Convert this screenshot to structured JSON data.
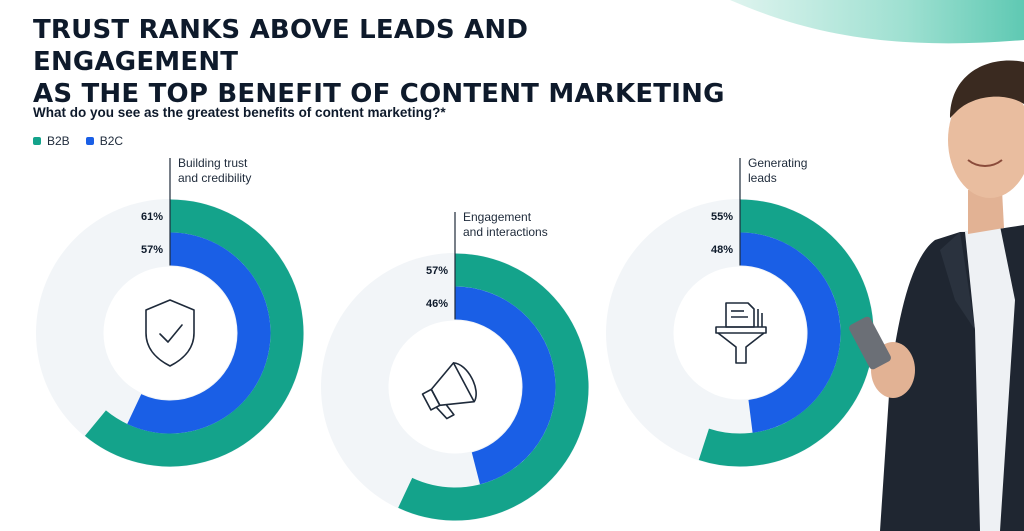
{
  "title_line1": "TRUST RANKS ABOVE LEADS AND ENGAGEMENT",
  "title_line2": "AS THE TOP BENEFIT OF CONTENT MARKETING",
  "question": "What do you see as the greatest benefits of content marketing?*",
  "colors": {
    "b2b": "#14a38b",
    "b2c": "#1a5fe6",
    "track": "#f2f5f8",
    "text": "#0e1a2b"
  },
  "chart_data": {
    "type": "radial-bar",
    "series": [
      {
        "name": "B2B",
        "values": [
          61,
          57,
          55
        ]
      },
      {
        "name": "B2C",
        "values": [
          57,
          46,
          48
        ]
      }
    ],
    "categories": [
      {
        "label_line1": "Building trust",
        "label_line2": "and credibility",
        "icon": "shield-check-icon",
        "b2b": 61,
        "b2c": 57,
        "b2b_label": "61%",
        "b2c_label": "57%"
      },
      {
        "label_line1": "Engagement",
        "label_line2": "and interactions",
        "icon": "megaphone-icon",
        "b2b": 57,
        "b2c": 46,
        "b2b_label": "57%",
        "b2c_label": "46%"
      },
      {
        "label_line1": "Generating",
        "label_line2": "leads",
        "icon": "document-funnel-icon",
        "b2b": 55,
        "b2c": 48,
        "b2b_label": "55%",
        "b2c_label": "48%"
      }
    ],
    "legend": [
      "B2B",
      "B2C"
    ],
    "legend_position": "top-left",
    "max": 100
  }
}
